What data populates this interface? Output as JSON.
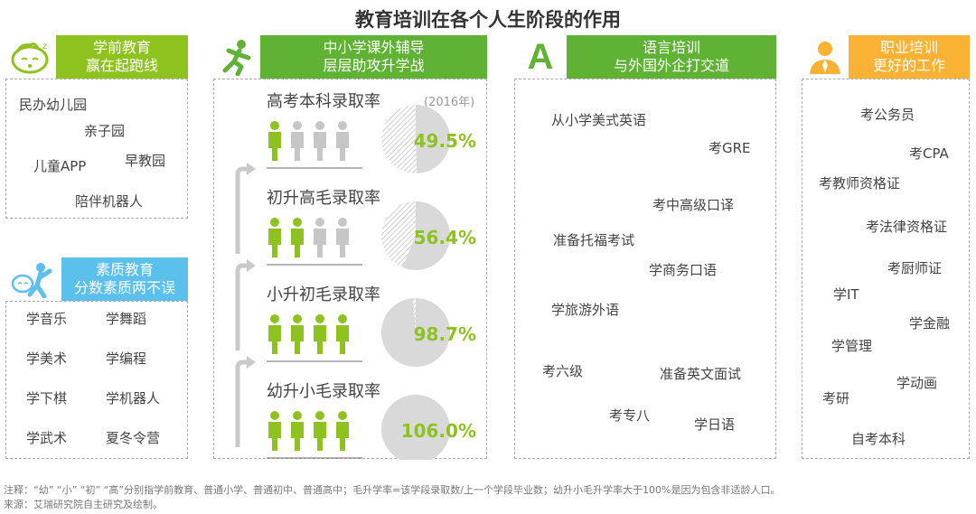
{
  "title": "教育培训在各个人生阶段的作用",
  "colors": {
    "green": "#8dc21f",
    "teal": "#5fb233",
    "blue": "#5bc0eb",
    "orange": "#f9b233",
    "gray": "#c6c6c6"
  },
  "preschool": {
    "header_line1": "学前教育",
    "header_line2": "赢在起跑线",
    "icon": "baby-face-icon",
    "items": [
      "民办幼儿园",
      "亲子园",
      "儿童APP",
      "早教园",
      "陪伴机器人"
    ]
  },
  "quality": {
    "header_line1": "素质教育",
    "header_line2": "分数素质两不误",
    "icon": "kid-reaching-icon",
    "items": [
      "学音乐",
      "学舞蹈",
      "学美术",
      "学编程",
      "学下棋",
      "学机器人",
      "学武术",
      "夏冬令营"
    ]
  },
  "k12": {
    "header_line1": "中小学课外辅导",
    "header_line2": "层层助攻升学战",
    "icon": "running-person-icon",
    "year_note": "(2016年)"
  },
  "chart_data": {
    "type": "pie",
    "year": "2016年",
    "categories": [
      "高考本科录取率",
      "初升高毛录取率",
      "小升初毛录取率",
      "幼升小毛录取率"
    ],
    "values": [
      49.5,
      56.4,
      98.7,
      106.0
    ],
    "value_labels": [
      "49.5%",
      "56.4%",
      "98.7%",
      "106.0%"
    ],
    "people_highlighted": [
      1,
      2,
      4,
      4
    ],
    "people_total": 4,
    "unit": "%"
  },
  "language": {
    "header_line1": "语言培训",
    "header_line2": "与外国外企打交道",
    "icon": "letter-a-icon",
    "icon_text": "A",
    "items": [
      "从小学美式英语",
      "考GRE",
      "考中高级口译",
      "准备托福考试",
      "学商务口语",
      "学旅游外语",
      "考六级",
      "准备英文面试",
      "考专八",
      "学日语"
    ]
  },
  "career": {
    "header_line1": "职业培训",
    "header_line2": "更好的工作",
    "icon": "businessman-icon",
    "items": [
      "考公务员",
      "考CPA",
      "考教师资格证",
      "考法律资格证",
      "考厨师证",
      "学IT",
      "学金融",
      "学管理",
      "学动画",
      "考研",
      "自考本科"
    ]
  },
  "footnote": {
    "note": "注释：“幼” “小” “初” “高”分别指学前教育、普通小学、普通初中、普通高中；毛升学率=该学段录取数/上一个学段毕业数；幼升小毛升学率大于100%是因为包含非适龄人口。",
    "source": "来源：艾瑞研究院自主研究及绘制。"
  }
}
